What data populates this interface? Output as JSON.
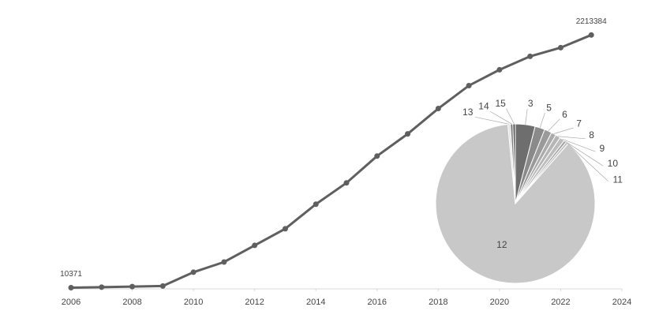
{
  "chart_data": [
    {
      "type": "line",
      "x": [
        2006,
        2007,
        2008,
        2009,
        2010,
        2011,
        2012,
        2013,
        2014,
        2015,
        2016,
        2017,
        2018,
        2019,
        2020,
        2021,
        2022,
        2023
      ],
      "series": [
        {
          "color": "#5f5f5f",
          "values": [
            10371,
            15000,
            20000,
            25000,
            145000,
            234000,
            379000,
            524000,
            738000,
            924000,
            1158000,
            1351000,
            1572000,
            1772000,
            1910000,
            2027000,
            2103000,
            2213384
          ]
        }
      ],
      "xlim": [
        2006,
        2024
      ],
      "xticks": [
        2006,
        2008,
        2010,
        2012,
        2014,
        2016,
        2018,
        2020,
        2022,
        2024
      ],
      "ylim": [
        0,
        2250000
      ]
    },
    {
      "type": "pie",
      "categories": [
        "3",
        "5",
        "6",
        "7",
        "8",
        "9",
        "10",
        "11",
        "12",
        "13",
        "14",
        "15"
      ],
      "values": [
        4,
        2,
        1.5,
        1,
        1,
        1,
        0.5,
        0.5,
        87,
        0.5,
        0.5,
        0.5
      ],
      "colors": [
        "#6e6e6e",
        "#8a8a8a",
        "#9a9a9a",
        "#ababab",
        "#b5b5b5",
        "#bdbdbd",
        "#a0a0a0",
        "#c0c0c0",
        "#c8c8c8",
        "#e0e0e0",
        "#7a7a7a",
        "#5a5a5a"
      ]
    }
  ]
}
